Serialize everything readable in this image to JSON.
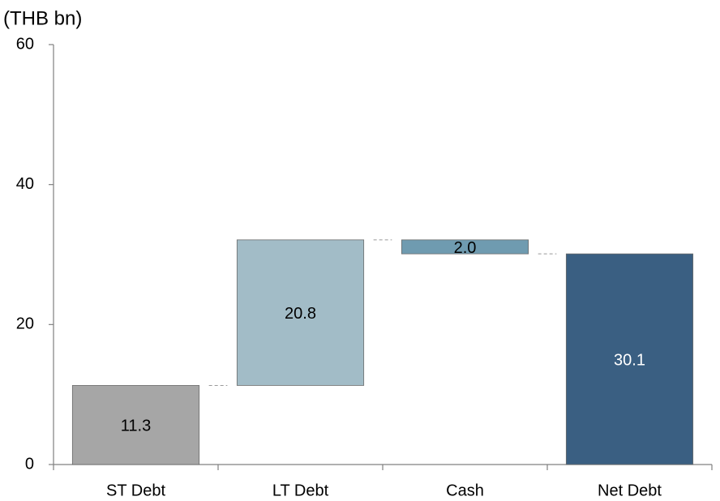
{
  "chart_data": {
    "type": "waterfall",
    "title": "(THB bn)",
    "categories": [
      "ST Debt",
      "LT Debt",
      "Cash",
      "Net Debt"
    ],
    "values": [
      11.3,
      20.8,
      -2.0,
      30.1
    ],
    "value_labels": [
      "11.3",
      "20.8",
      "2.0",
      "30.1"
    ],
    "measure": [
      "relative",
      "relative",
      "relative",
      "total"
    ],
    "colors": [
      "#a6a6a6",
      "#a2bcc7",
      "#6f9bb0",
      "#3a5f82"
    ],
    "label_colors": [
      "#000000",
      "#000000",
      "#000000",
      "#ffffff"
    ],
    "ylim": [
      0,
      60
    ],
    "yticks": [
      0,
      20,
      40,
      60
    ],
    "grid": false,
    "connectors": true
  }
}
